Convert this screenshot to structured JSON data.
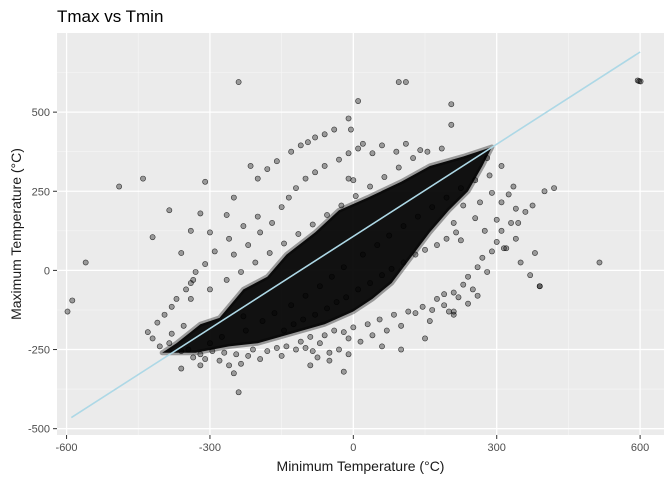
{
  "chart_data": {
    "type": "scatter",
    "title": "Tmax vs Tmin",
    "xlabel": "Minimum Temperature (°C)",
    "ylabel": "Maximum Temperature (°C)",
    "xlim": [
      -620,
      650
    ],
    "ylim": [
      -520,
      750
    ],
    "xticks": [
      -600,
      -300,
      0,
      300,
      600
    ],
    "yticks": [
      -500,
      -250,
      0,
      250,
      500
    ],
    "xtick_labels": [
      "-600",
      "-300",
      "0",
      "300",
      "600"
    ],
    "ytick_labels": [
      "-500",
      "-250",
      "0",
      "250",
      "500"
    ],
    "grid": true,
    "legend": "none",
    "point_color": "#000000",
    "point_alpha": 0.35,
    "fit_line": {
      "color": "#add8e6",
      "from": [
        -590,
        -465
      ],
      "to": [
        600,
        690
      ]
    },
    "dense_cloud": [
      [
        -400,
        -260
      ],
      [
        -370,
        -230
      ],
      [
        -320,
        -170
      ],
      [
        -280,
        -150
      ],
      [
        -230,
        -60
      ],
      [
        -180,
        -20
      ],
      [
        -140,
        50
      ],
      [
        -80,
        120
      ],
      [
        -30,
        190
      ],
      [
        30,
        230
      ],
      [
        100,
        280
      ],
      [
        160,
        330
      ],
      [
        230,
        360
      ],
      [
        290,
        390
      ],
      [
        270,
        330
      ],
      [
        240,
        250
      ],
      [
        200,
        190
      ],
      [
        160,
        120
      ],
      [
        120,
        40
      ],
      [
        80,
        -40
      ],
      [
        40,
        -90
      ],
      [
        0,
        -130
      ],
      [
        -60,
        -170
      ],
      [
        -130,
        -200
      ],
      [
        -200,
        -230
      ],
      [
        -260,
        -240
      ],
      [
        -330,
        -260
      ],
      [
        -370,
        -260
      ]
    ],
    "points": [
      [
        -598,
        -130
      ],
      [
        -588,
        -95
      ],
      [
        -560,
        25
      ],
      [
        -490,
        265
      ],
      [
        -440,
        290
      ],
      [
        -420,
        105
      ],
      [
        -385,
        190
      ],
      [
        -360,
        55
      ],
      [
        -340,
        125
      ],
      [
        -330,
        -5
      ],
      [
        -320,
        180
      ],
      [
        -310,
        280
      ],
      [
        -300,
        120
      ],
      [
        -265,
        175
      ],
      [
        -250,
        230
      ],
      [
        -240,
        595
      ],
      [
        -230,
        -145
      ],
      [
        -215,
        330
      ],
      [
        -200,
        290
      ],
      [
        -180,
        320
      ],
      [
        -160,
        345
      ],
      [
        -130,
        375
      ],
      [
        -110,
        395
      ],
      [
        -95,
        405
      ],
      [
        -80,
        420
      ],
      [
        -60,
        430
      ],
      [
        -40,
        445
      ],
      [
        0,
        285
      ],
      [
        -420,
        -215
      ],
      [
        -405,
        -240
      ],
      [
        -430,
        -195
      ],
      [
        -410,
        -165
      ],
      [
        -395,
        -140
      ],
      [
        -385,
        -230
      ],
      [
        -380,
        -115
      ],
      [
        -370,
        -90
      ],
      [
        -360,
        -255
      ],
      [
        -350,
        -60
      ],
      [
        -345,
        -250
      ],
      [
        -340,
        -40
      ],
      [
        -335,
        -275
      ],
      [
        -320,
        -265
      ],
      [
        -310,
        -280
      ],
      [
        -295,
        -255
      ],
      [
        -280,
        -285
      ],
      [
        -270,
        -260
      ],
      [
        -260,
        -300
      ],
      [
        -245,
        -265
      ],
      [
        -240,
        -385
      ],
      [
        -235,
        -295
      ],
      [
        -220,
        -270
      ],
      [
        -210,
        -250
      ],
      [
        -195,
        -280
      ],
      [
        -180,
        -255
      ],
      [
        -160,
        -245
      ],
      [
        -150,
        -270
      ],
      [
        -140,
        -240
      ],
      [
        -120,
        -250
      ],
      [
        -110,
        -225
      ],
      [
        -100,
        -245
      ],
      [
        -90,
        -210
      ],
      [
        -85,
        -255
      ],
      [
        -70,
        -230
      ],
      [
        -60,
        -205
      ],
      [
        -50,
        -260
      ],
      [
        -40,
        -190
      ],
      [
        -30,
        -250
      ],
      [
        -20,
        -195
      ],
      [
        -10,
        -215
      ],
      [
        0,
        -180
      ],
      [
        15,
        -225
      ],
      [
        30,
        -170
      ],
      [
        40,
        -205
      ],
      [
        55,
        -155
      ],
      [
        70,
        -190
      ],
      [
        85,
        -140
      ],
      [
        100,
        -175
      ],
      [
        115,
        -130
      ],
      [
        130,
        -135
      ],
      [
        145,
        -115
      ],
      [
        160,
        -160
      ],
      [
        175,
        -90
      ],
      [
        190,
        -110
      ],
      [
        200,
        -130
      ],
      [
        210,
        -70
      ],
      [
        220,
        -85
      ],
      [
        230,
        -45
      ],
      [
        240,
        -20
      ],
      [
        250,
        -60
      ],
      [
        260,
        10
      ],
      [
        270,
        40
      ],
      [
        280,
        -5
      ],
      [
        290,
        60
      ],
      [
        300,
        90
      ],
      [
        310,
        125
      ],
      [
        320,
        70
      ],
      [
        330,
        150
      ],
      [
        340,
        100
      ],
      [
        350,
        25
      ],
      [
        360,
        185
      ],
      [
        370,
        -15
      ],
      [
        380,
        55
      ],
      [
        390,
        -50
      ],
      [
        400,
        250
      ],
      [
        420,
        260
      ],
      [
        340,
        195
      ],
      [
        310,
        215
      ],
      [
        300,
        160
      ],
      [
        290,
        245
      ],
      [
        325,
        240
      ],
      [
        -360,
        -310
      ],
      [
        -320,
        -300
      ],
      [
        -250,
        -325
      ],
      [
        -90,
        -300
      ],
      [
        -75,
        -275
      ],
      [
        -50,
        -285
      ],
      [
        -20,
        -320
      ],
      [
        -10,
        -265
      ],
      [
        60,
        -240
      ],
      [
        100,
        -250
      ],
      [
        150,
        -215
      ],
      [
        165,
        -125
      ],
      [
        210,
        -140
      ],
      [
        240,
        -105
      ],
      [
        260,
        -80
      ],
      [
        190,
        -75
      ],
      [
        255,
        165
      ],
      [
        230,
        205
      ],
      [
        265,
        215
      ],
      [
        275,
        125
      ],
      [
        210,
        150
      ],
      [
        225,
        95
      ],
      [
        -145,
        -190
      ],
      [
        -125,
        -170
      ],
      [
        -105,
        -155
      ],
      [
        -80,
        -140
      ],
      [
        -55,
        -120
      ],
      [
        -35,
        -100
      ],
      [
        -15,
        -85
      ],
      [
        10,
        -60
      ],
      [
        35,
        -40
      ],
      [
        60,
        -15
      ],
      [
        80,
        5
      ],
      [
        105,
        25
      ],
      [
        130,
        50
      ],
      [
        150,
        65
      ],
      [
        175,
        80
      ],
      [
        195,
        100
      ],
      [
        215,
        120
      ],
      [
        -120,
        260
      ],
      [
        -100,
        290
      ],
      [
        -80,
        310
      ],
      [
        -60,
        330
      ],
      [
        -30,
        350
      ],
      [
        -10,
        370
      ],
      [
        10,
        385
      ],
      [
        20,
        400
      ],
      [
        40,
        370
      ],
      [
        60,
        395
      ],
      [
        90,
        375
      ],
      [
        110,
        400
      ],
      [
        140,
        380
      ],
      [
        -200,
        170
      ],
      [
        -230,
        140
      ],
      [
        -260,
        100
      ],
      [
        -290,
        60
      ],
      [
        -310,
        20
      ],
      [
        -335,
        -30
      ],
      [
        -250,
        50
      ],
      [
        -220,
        80
      ],
      [
        -195,
        120
      ],
      [
        -170,
        150
      ],
      [
        -150,
        200
      ],
      [
        -135,
        230
      ],
      [
        10,
        535
      ],
      [
        -10,
        480
      ],
      [
        -5,
        445
      ],
      [
        95,
        595
      ],
      [
        110,
        595
      ],
      [
        205,
        525
      ],
      [
        205,
        460
      ],
      [
        210,
        -130
      ],
      [
        515,
        25
      ],
      [
        598,
        598
      ],
      [
        601,
        597
      ],
      [
        595,
        600
      ],
      [
        390,
        -50
      ],
      [
        315,
        70
      ],
      [
        345,
        150
      ],
      [
        375,
        205
      ],
      [
        335,
        265
      ],
      [
        310,
        330
      ],
      [
        280,
        355
      ],
      [
        -10,
        290
      ],
      [
        -340,
        -90
      ],
      [
        -300,
        -60
      ],
      [
        -265,
        -30
      ],
      [
        -235,
        -5
      ],
      [
        -205,
        25
      ],
      [
        -175,
        55
      ],
      [
        -145,
        85
      ],
      [
        -115,
        115
      ],
      [
        -85,
        145
      ],
      [
        -55,
        175
      ],
      [
        -25,
        205
      ],
      [
        5,
        235
      ],
      [
        35,
        265
      ],
      [
        65,
        295
      ],
      [
        95,
        325
      ],
      [
        125,
        355
      ],
      [
        155,
        375
      ],
      [
        185,
        385
      ],
      [
        -380,
        -200
      ],
      [
        -355,
        -175
      ],
      [
        -300,
        -230
      ],
      [
        -275,
        -210
      ],
      [
        -225,
        -190
      ],
      [
        -190,
        -160
      ],
      [
        -165,
        -135
      ],
      [
        -130,
        -110
      ],
      [
        -100,
        -80
      ],
      [
        -70,
        -50
      ],
      [
        -45,
        -20
      ],
      [
        -20,
        10
      ],
      [
        20,
        50
      ],
      [
        50,
        80
      ],
      [
        75,
        110
      ],
      [
        105,
        140
      ],
      [
        135,
        170
      ],
      [
        165,
        200
      ],
      [
        195,
        230
      ],
      [
        225,
        260
      ],
      [
        255,
        285
      ],
      [
        285,
        300
      ]
    ]
  }
}
